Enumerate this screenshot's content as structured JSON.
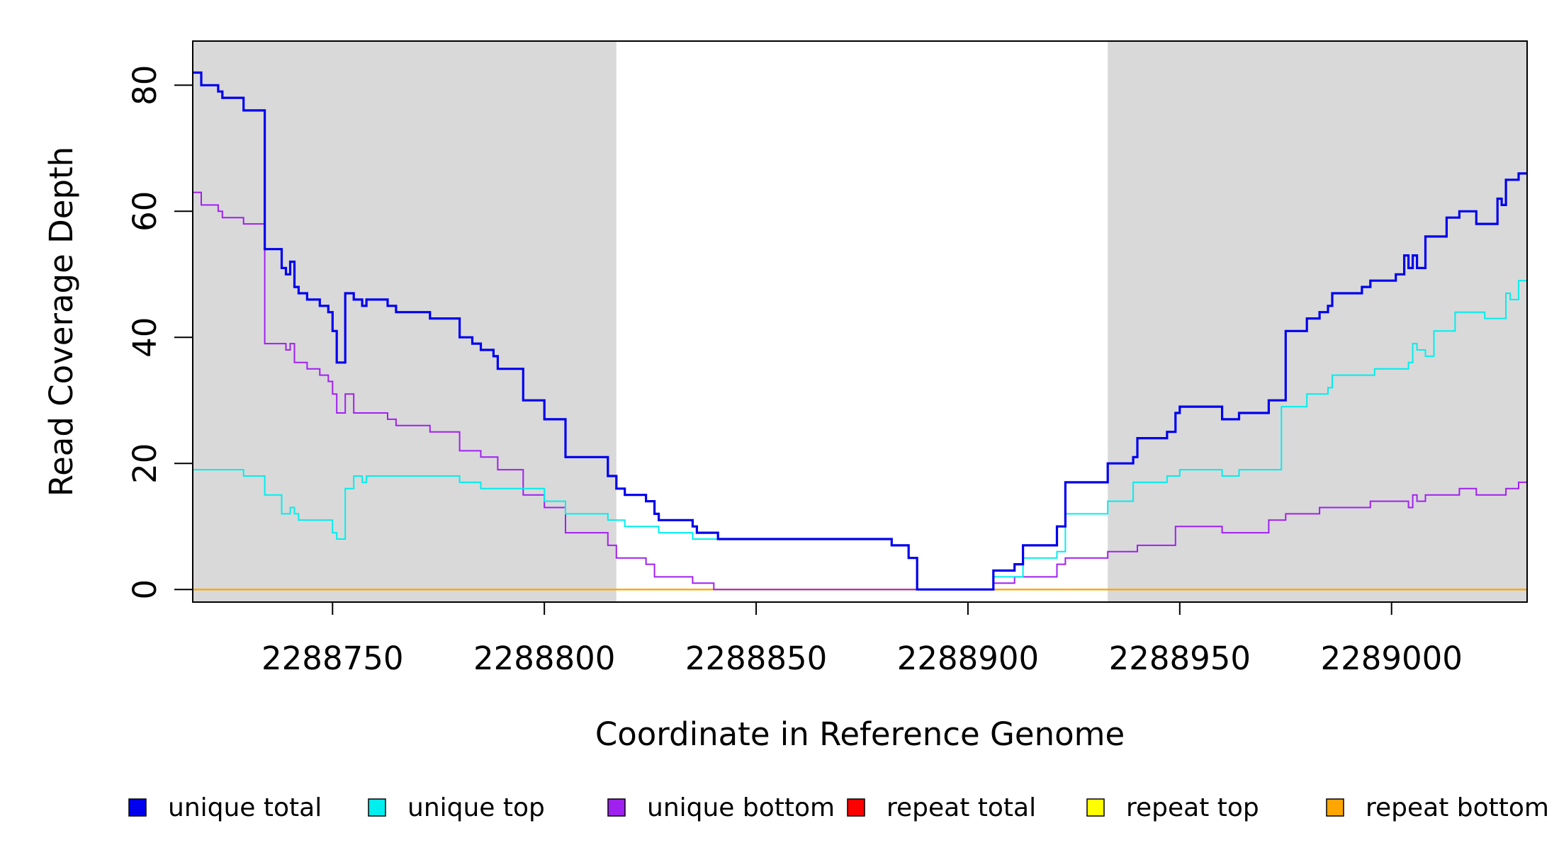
{
  "chart_data": {
    "type": "line",
    "title": "",
    "xlabel": "Coordinate in Reference Genome",
    "ylabel": "Read Coverage Depth",
    "xlim": [
      2288717,
      2289032
    ],
    "ylim": [
      -2,
      87
    ],
    "x_ticks": [
      2288750,
      2288800,
      2288850,
      2288900,
      2288950,
      2289000
    ],
    "y_ticks": [
      0,
      20,
      40,
      60,
      80
    ],
    "shaded_regions": [
      [
        2288717,
        2288817
      ],
      [
        2288933,
        2289032
      ]
    ],
    "grid": false,
    "legend_position": "bottom",
    "series": [
      {
        "name": "unique total",
        "color": "#0000EE",
        "step_points": [
          [
            2288717,
            82
          ],
          [
            2288719,
            80
          ],
          [
            2288723,
            79
          ],
          [
            2288724,
            78
          ],
          [
            2288729,
            76
          ],
          [
            2288734,
            54
          ],
          [
            2288738,
            51
          ],
          [
            2288739,
            50
          ],
          [
            2288740,
            52
          ],
          [
            2288741,
            48
          ],
          [
            2288742,
            47
          ],
          [
            2288744,
            46
          ],
          [
            2288747,
            45
          ],
          [
            2288749,
            44
          ],
          [
            2288750,
            41
          ],
          [
            2288751,
            36
          ],
          [
            2288753,
            47
          ],
          [
            2288755,
            46
          ],
          [
            2288757,
            45
          ],
          [
            2288758,
            46
          ],
          [
            2288763,
            45
          ],
          [
            2288765,
            44
          ],
          [
            2288773,
            43
          ],
          [
            2288780,
            40
          ],
          [
            2288783,
            39
          ],
          [
            2288785,
            38
          ],
          [
            2288788,
            37
          ],
          [
            2288789,
            35
          ],
          [
            2288795,
            30
          ],
          [
            2288800,
            27
          ],
          [
            2288805,
            21
          ],
          [
            2288815,
            18
          ],
          [
            2288817,
            16
          ],
          [
            2288819,
            15
          ],
          [
            2288824,
            14
          ],
          [
            2288826,
            12
          ],
          [
            2288827,
            11
          ],
          [
            2288835,
            10
          ],
          [
            2288836,
            9
          ],
          [
            2288841,
            8
          ],
          [
            2288882,
            7
          ],
          [
            2288886,
            5
          ],
          [
            2288888,
            0
          ],
          [
            2288906,
            3
          ],
          [
            2288911,
            4
          ],
          [
            2288913,
            7
          ],
          [
            2288921,
            10
          ],
          [
            2288923,
            17
          ],
          [
            2288933,
            20
          ],
          [
            2288939,
            21
          ],
          [
            2288940,
            24
          ],
          [
            2288947,
            25
          ],
          [
            2288949,
            28
          ],
          [
            2288950,
            29
          ],
          [
            2288960,
            27
          ],
          [
            2288964,
            28
          ],
          [
            2288971,
            30
          ],
          [
            2288975,
            41
          ],
          [
            2288980,
            43
          ],
          [
            2288983,
            44
          ],
          [
            2288985,
            45
          ],
          [
            2288986,
            47
          ],
          [
            2288993,
            48
          ],
          [
            2288995,
            49
          ],
          [
            2289001,
            50
          ],
          [
            2289003,
            53
          ],
          [
            2289004,
            51
          ],
          [
            2289005,
            53
          ],
          [
            2289006,
            51
          ],
          [
            2289008,
            56
          ],
          [
            2289013,
            59
          ],
          [
            2289016,
            60
          ],
          [
            2289020,
            58
          ],
          [
            2289025,
            62
          ],
          [
            2289026,
            61
          ],
          [
            2289027,
            65
          ],
          [
            2289030,
            66
          ],
          [
            2289032,
            66
          ]
        ]
      },
      {
        "name": "unique top",
        "color": "#00EEEE",
        "step_points": [
          [
            2288717,
            19
          ],
          [
            2288729,
            18
          ],
          [
            2288734,
            15
          ],
          [
            2288738,
            12
          ],
          [
            2288740,
            13
          ],
          [
            2288741,
            12
          ],
          [
            2288742,
            11
          ],
          [
            2288750,
            9
          ],
          [
            2288751,
            8
          ],
          [
            2288753,
            16
          ],
          [
            2288755,
            18
          ],
          [
            2288757,
            17
          ],
          [
            2288758,
            18
          ],
          [
            2288780,
            17
          ],
          [
            2288785,
            16
          ],
          [
            2288800,
            14
          ],
          [
            2288805,
            12
          ],
          [
            2288815,
            11
          ],
          [
            2288819,
            10
          ],
          [
            2288827,
            9
          ],
          [
            2288835,
            8
          ],
          [
            2288882,
            7
          ],
          [
            2288886,
            5
          ],
          [
            2288888,
            0
          ],
          [
            2288906,
            2
          ],
          [
            2288913,
            5
          ],
          [
            2288921,
            6
          ],
          [
            2288923,
            12
          ],
          [
            2288933,
            14
          ],
          [
            2288939,
            17
          ],
          [
            2288947,
            18
          ],
          [
            2288950,
            19
          ],
          [
            2288960,
            18
          ],
          [
            2288964,
            19
          ],
          [
            2288974,
            29
          ],
          [
            2288980,
            31
          ],
          [
            2288985,
            32
          ],
          [
            2288986,
            34
          ],
          [
            2288996,
            35
          ],
          [
            2289004,
            36
          ],
          [
            2289005,
            39
          ],
          [
            2289006,
            38
          ],
          [
            2289008,
            37
          ],
          [
            2289010,
            41
          ],
          [
            2289015,
            44
          ],
          [
            2289022,
            43
          ],
          [
            2289027,
            47
          ],
          [
            2289028,
            46
          ],
          [
            2289030,
            49
          ],
          [
            2289032,
            49
          ]
        ]
      },
      {
        "name": "unique bottom",
        "color": "#A020F0",
        "step_points": [
          [
            2288717,
            63
          ],
          [
            2288719,
            61
          ],
          [
            2288723,
            60
          ],
          [
            2288724,
            59
          ],
          [
            2288729,
            58
          ],
          [
            2288734,
            39
          ],
          [
            2288739,
            38
          ],
          [
            2288740,
            39
          ],
          [
            2288741,
            36
          ],
          [
            2288744,
            35
          ],
          [
            2288747,
            34
          ],
          [
            2288749,
            33
          ],
          [
            2288750,
            31
          ],
          [
            2288751,
            28
          ],
          [
            2288753,
            31
          ],
          [
            2288755,
            28
          ],
          [
            2288763,
            27
          ],
          [
            2288765,
            26
          ],
          [
            2288773,
            25
          ],
          [
            2288780,
            22
          ],
          [
            2288785,
            21
          ],
          [
            2288789,
            19
          ],
          [
            2288795,
            15
          ],
          [
            2288800,
            13
          ],
          [
            2288805,
            9
          ],
          [
            2288815,
            7
          ],
          [
            2288817,
            5
          ],
          [
            2288824,
            4
          ],
          [
            2288826,
            2
          ],
          [
            2288835,
            1
          ],
          [
            2288840,
            0
          ],
          [
            2288906,
            1
          ],
          [
            2288911,
            2
          ],
          [
            2288921,
            4
          ],
          [
            2288923,
            5
          ],
          [
            2288933,
            6
          ],
          [
            2288940,
            7
          ],
          [
            2288949,
            10
          ],
          [
            2288960,
            9
          ],
          [
            2288971,
            11
          ],
          [
            2288975,
            12
          ],
          [
            2288983,
            13
          ],
          [
            2288995,
            14
          ],
          [
            2289004,
            13
          ],
          [
            2289005,
            15
          ],
          [
            2289006,
            14
          ],
          [
            2289008,
            15
          ],
          [
            2289016,
            16
          ],
          [
            2289020,
            15
          ],
          [
            2289027,
            16
          ],
          [
            2289030,
            17
          ],
          [
            2289032,
            17
          ]
        ]
      },
      {
        "name": "repeat total",
        "color": "#FF0000",
        "step_points": [
          [
            2288717,
            0
          ],
          [
            2289032,
            0
          ]
        ]
      },
      {
        "name": "repeat top",
        "color": "#FFFF00",
        "step_points": [
          [
            2288717,
            0
          ],
          [
            2289032,
            0
          ]
        ]
      },
      {
        "name": "repeat bottom",
        "color": "#FFA500",
        "step_points": [
          [
            2288717,
            0
          ],
          [
            2289032,
            0
          ]
        ]
      }
    ]
  }
}
